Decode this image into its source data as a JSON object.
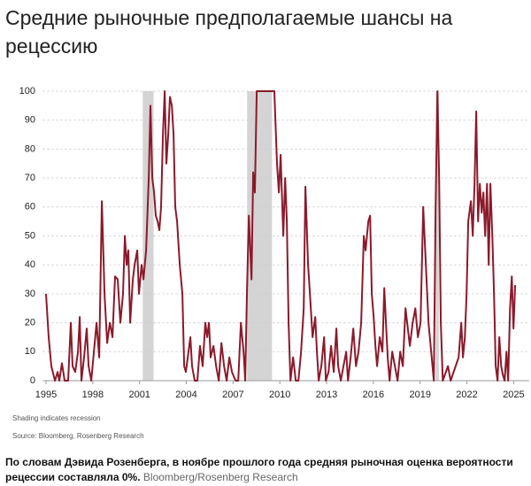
{
  "chart_data": {
    "type": "line",
    "title": "Средние рыночные предполагаемые шансы на рецессию",
    "color": "#8b1a2b",
    "x": [
      1995.0,
      1995.17,
      1995.34,
      1995.57,
      1995.74,
      1995.85,
      1996.02,
      1996.19,
      1996.42,
      1996.59,
      1996.7,
      1996.87,
      1997.05,
      1997.16,
      1997.27,
      1997.44,
      1997.61,
      1997.73,
      1997.9,
      1998.07,
      1998.24,
      1998.41,
      1998.58,
      1998.75,
      1998.92,
      1999.09,
      1999.26,
      1999.43,
      1999.6,
      1999.77,
      1999.94,
      2000.06,
      2000.17,
      2000.28,
      2000.4,
      2000.57,
      2000.68,
      2000.85,
      2000.96,
      2001.13,
      2001.25,
      2001.42,
      2001.59,
      2001.7,
      2001.82,
      2001.93,
      2002.04,
      2002.16,
      2002.27,
      2002.38,
      2002.5,
      2002.61,
      2002.72,
      2002.84,
      2002.95,
      2003.07,
      2003.18,
      2003.29,
      2003.41,
      2003.58,
      2003.75,
      2003.86,
      2003.97,
      2004.14,
      2004.26,
      2004.37,
      2004.54,
      2004.71,
      2004.88,
      2005.05,
      2005.22,
      2005.34,
      2005.45,
      2005.56,
      2005.74,
      2005.91,
      2006.08,
      2006.25,
      2006.42,
      2006.59,
      2006.76,
      2006.93,
      2007.16,
      2007.33,
      2007.5,
      2007.67,
      2007.78,
      2007.89,
      2008.01,
      2008.18,
      2008.29,
      2008.4,
      2008.52,
      2009.65,
      2009.82,
      2009.94,
      2010.05,
      2010.22,
      2010.34,
      2010.45,
      2010.56,
      2010.68,
      2010.85,
      2011.02,
      2011.19,
      2011.36,
      2011.53,
      2011.64,
      2011.81,
      2011.93,
      2012.1,
      2012.27,
      2012.38,
      2012.49,
      2012.66,
      2012.84,
      2012.95,
      2013.12,
      2013.29,
      2013.46,
      2013.63,
      2013.74,
      2013.91,
      2014.08,
      2014.26,
      2014.37,
      2014.54,
      2014.71,
      2014.88,
      2015.05,
      2015.22,
      2015.39,
      2015.5,
      2015.68,
      2015.79,
      2015.9,
      2016.02,
      2016.13,
      2016.24,
      2016.41,
      2016.58,
      2016.7,
      2016.81,
      2016.92,
      2017.04,
      2017.21,
      2017.38,
      2017.55,
      2017.72,
      2017.89,
      2018.06,
      2018.17,
      2018.34,
      2018.52,
      2018.69,
      2018.86,
      2019.03,
      2019.2,
      2019.37,
      2019.54,
      2019.71,
      2019.88,
      2019.99,
      2020.11,
      2020.22,
      2020.33,
      2020.45,
      2020.79,
      2020.96,
      2021.47,
      2021.64,
      2021.75,
      2021.87,
      2021.98,
      2022.09,
      2022.26,
      2022.38,
      2022.49,
      2022.6,
      2022.72,
      2022.83,
      2022.95,
      2023.06,
      2023.17,
      2023.29,
      2023.4,
      2023.51,
      2023.63,
      2023.74,
      2023.85,
      2023.97,
      2024.08,
      2024.2,
      2024.31,
      2024.42,
      2024.54,
      2024.65,
      2024.77,
      2024.88,
      2024.99,
      2025.1
    ],
    "values": [
      30,
      15,
      5,
      0,
      3,
      0,
      6,
      0,
      0,
      20,
      5,
      3,
      10,
      22,
      0,
      8,
      18,
      5,
      0,
      10,
      20,
      8,
      62,
      30,
      13,
      20,
      15,
      36,
      35,
      20,
      30,
      50,
      40,
      45,
      20,
      35,
      40,
      45,
      30,
      40,
      35,
      45,
      70,
      95,
      70,
      65,
      57,
      55,
      52,
      60,
      85,
      100,
      75,
      85,
      98,
      95,
      85,
      60,
      55,
      40,
      30,
      5,
      3,
      10,
      15,
      5,
      0,
      0,
      12,
      5,
      20,
      15,
      20,
      8,
      12,
      5,
      0,
      13,
      5,
      0,
      8,
      3,
      0,
      0,
      20,
      10,
      0,
      30,
      57,
      35,
      72,
      65,
      100,
      100,
      75,
      65,
      78,
      50,
      70,
      55,
      20,
      0,
      8,
      0,
      0,
      10,
      25,
      67,
      40,
      30,
      15,
      22,
      10,
      0,
      5,
      15,
      0,
      3,
      12,
      3,
      18,
      5,
      0,
      5,
      10,
      0,
      8,
      18,
      5,
      10,
      20,
      50,
      45,
      55,
      57,
      30,
      22,
      12,
      5,
      15,
      10,
      32,
      20,
      8,
      0,
      10,
      5,
      0,
      10,
      5,
      25,
      20,
      12,
      20,
      25,
      15,
      20,
      60,
      40,
      20,
      10,
      0,
      60,
      100,
      70,
      20,
      0,
      5,
      0,
      8,
      20,
      8,
      15,
      30,
      55,
      62,
      50,
      68,
      93,
      55,
      68,
      58,
      65,
      50,
      68,
      40,
      68,
      50,
      30,
      5,
      0,
      15,
      5,
      2,
      0,
      10,
      0,
      25,
      36,
      18,
      33
    ],
    "recessions": [
      [
        2001.2,
        2001.9
      ],
      [
        2007.9,
        2009.5
      ],
      [
        2020.0,
        2020.2
      ]
    ],
    "xlim": [
      1994.8,
      2026
    ],
    "xticks": [
      1995,
      1998,
      2001,
      2004,
      2007,
      2010,
      2013,
      2016,
      2019,
      2022,
      2025
    ],
    "ylim": [
      0,
      100
    ],
    "yticks": [
      0,
      10,
      20,
      30,
      40,
      50,
      60,
      70,
      80,
      90,
      100
    ],
    "grid": true,
    "notes": [
      "Shading indicates recession",
      "Source: Bloomberg, Rosenberg Research"
    ]
  },
  "caption": {
    "text": "По словам Дэвида Розенберга, в ноябре прошлого года средняя рыночная оценка вероятности рецессии составляла 0%.",
    "source": "Bloomberg/Rosenberg Research"
  }
}
